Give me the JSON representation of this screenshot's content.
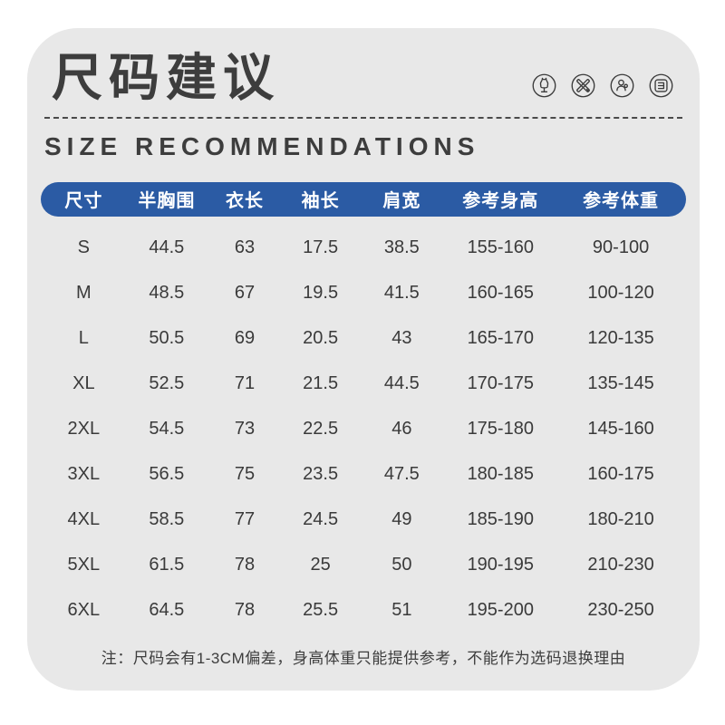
{
  "card": {
    "title": "尺码建议",
    "subtitle": "SIZE RECOMMENDATIONS",
    "note": "注：尺码会有1-3CM偏差，身高体重只能提供参考，不能作为选码退换理由"
  },
  "icons": [
    {
      "name": "mannequin-icon"
    },
    {
      "name": "design-tools-icon"
    },
    {
      "name": "tailor-user-icon"
    },
    {
      "name": "measure-ruler-icon"
    }
  ],
  "colors": {
    "card_bg": "#e8e8e8",
    "header_bg": "#2b5ba4",
    "text_dark": "#3a3a3a",
    "header_text": "#ffffff"
  },
  "chart_data": {
    "type": "table",
    "title": "尺码建议 / SIZE RECOMMENDATIONS",
    "columns": [
      "尺寸",
      "半胸围",
      "衣长",
      "袖长",
      "肩宽",
      "参考身高",
      "参考体重"
    ],
    "rows": [
      [
        "S",
        "44.5",
        "63",
        "17.5",
        "38.5",
        "155-160",
        "90-100"
      ],
      [
        "M",
        "48.5",
        "67",
        "19.5",
        "41.5",
        "160-165",
        "100-120"
      ],
      [
        "L",
        "50.5",
        "69",
        "20.5",
        "43",
        "165-170",
        "120-135"
      ],
      [
        "XL",
        "52.5",
        "71",
        "21.5",
        "44.5",
        "170-175",
        "135-145"
      ],
      [
        "2XL",
        "54.5",
        "73",
        "22.5",
        "46",
        "175-180",
        "145-160"
      ],
      [
        "3XL",
        "56.5",
        "75",
        "23.5",
        "47.5",
        "180-185",
        "160-175"
      ],
      [
        "4XL",
        "58.5",
        "77",
        "24.5",
        "49",
        "185-190",
        "180-210"
      ],
      [
        "5XL",
        "61.5",
        "78",
        "25",
        "50",
        "190-195",
        "210-230"
      ],
      [
        "6XL",
        "64.5",
        "78",
        "25.5",
        "51",
        "195-200",
        "230-250"
      ]
    ]
  }
}
